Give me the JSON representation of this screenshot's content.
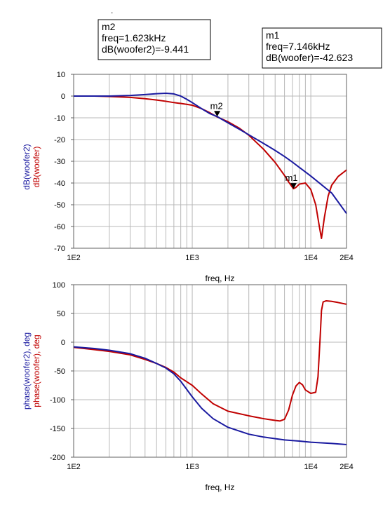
{
  "chart_data": [
    {
      "type": "line",
      "xscale": "log",
      "xlim": [
        100,
        20000
      ],
      "ylim": [
        -70,
        10
      ],
      "grid": true,
      "xlabel": "freq, Hz",
      "ylabel_lines": [
        {
          "text": "dB(woofer2)",
          "color": "#1a1aa0"
        },
        {
          "text": "dB(woofer)",
          "color": "#c00000"
        }
      ],
      "x_ticks": [
        "1E2",
        "1E3",
        "1E4",
        "2E4"
      ],
      "y_ticks": [
        "10",
        "0",
        "-10",
        "-20",
        "-30",
        "-40",
        "-50",
        "-60",
        "-70"
      ],
      "series": [
        {
          "color": "#1a1aa0",
          "x": [
            100,
            150,
            200,
            300,
            400,
            500,
            600,
            700,
            800,
            900,
            1000,
            1200,
            1400,
            1623,
            2000,
            2500,
            3000,
            4000,
            5000,
            6000,
            7000,
            8000,
            10000,
            12000,
            15000,
            20000
          ],
          "y": [
            0,
            0,
            0,
            0.3,
            0.7,
            1.1,
            1.3,
            1.0,
            0,
            -1.5,
            -3.0,
            -5.8,
            -8.0,
            -9.441,
            -12.3,
            -15.3,
            -17.8,
            -21.8,
            -25.0,
            -27.8,
            -30.4,
            -32.8,
            -36.8,
            -40.3,
            -44.6,
            -54.0
          ]
        },
        {
          "color": "#c00000",
          "x": [
            100,
            150,
            200,
            300,
            400,
            500,
            600,
            700,
            800,
            1000,
            1200,
            1400,
            1623,
            2000,
            2500,
            3000,
            4000,
            5000,
            6000,
            6500,
            7000,
            7146,
            7500,
            8000,
            9000,
            10000,
            11000,
            11800,
            12300,
            13000,
            14000,
            15000,
            17000,
            20000
          ],
          "y": [
            0,
            0,
            -0.2,
            -0.6,
            -1.2,
            -1.8,
            -2.4,
            -3.0,
            -3.4,
            -4.2,
            -5.8,
            -7.6,
            -9.6,
            -11.8,
            -14.8,
            -18.0,
            -24.5,
            -30.5,
            -36.5,
            -39.5,
            -42.0,
            -42.623,
            -42.0,
            -40.5,
            -40.0,
            -43.0,
            -50.0,
            -60.0,
            -65.5,
            -56.0,
            -46.0,
            -41.0,
            -37.0,
            -34.0
          ]
        }
      ],
      "markers": [
        {
          "name": "m2",
          "x": 1623,
          "y": -9.441,
          "box_lines": [
            "m2",
            "freq=1.623kHz",
            "dB(woofer2)=-9.441"
          ]
        },
        {
          "name": "m1",
          "x": 7146,
          "y": -42.623,
          "box_lines": [
            "m1",
            "freq=7.146kHz",
            "dB(woofer)=-42.623"
          ]
        }
      ]
    },
    {
      "type": "line",
      "xscale": "log",
      "xlim": [
        100,
        20000
      ],
      "ylim": [
        -200,
        100
      ],
      "grid": true,
      "xlabel": "freq, Hz",
      "ylabel_lines": [
        {
          "text": "phase(woofer2), deg",
          "color": "#1a1aa0"
        },
        {
          "text": "phase(woofer), deg",
          "color": "#c00000"
        }
      ],
      "x_ticks": [
        "1E2",
        "1E3",
        "1E4",
        "2E4"
      ],
      "y_ticks": [
        "100",
        "50",
        "0",
        "-50",
        "-100",
        "-150",
        "-200"
      ],
      "series": [
        {
          "color": "#1a1aa0",
          "x": [
            100,
            150,
            200,
            300,
            400,
            500,
            600,
            700,
            800,
            1000,
            1200,
            1500,
            2000,
            3000,
            4000,
            6000,
            8000,
            10000,
            15000,
            20000
          ],
          "y": [
            -8,
            -11,
            -14,
            -20,
            -28,
            -37,
            -45,
            -55,
            -68,
            -95,
            -115,
            -133,
            -148,
            -160,
            -165,
            -170,
            -172,
            -174,
            -176,
            -178
          ]
        },
        {
          "color": "#c00000",
          "x": [
            100,
            150,
            200,
            300,
            400,
            500,
            600,
            700,
            800,
            1000,
            1200,
            1500,
            2000,
            3000,
            4000,
            5000,
            5500,
            6000,
            6500,
            7000,
            7500,
            8000,
            8500,
            9000,
            10000,
            11000,
            11500,
            12000,
            12300,
            12700,
            13500,
            15000,
            17000,
            20000
          ],
          "y": [
            -9,
            -13,
            -16,
            -22,
            -30,
            -37,
            -44,
            -52,
            -62,
            -75,
            -90,
            -107,
            -120,
            -128,
            -133,
            -136,
            -137,
            -134,
            -118,
            -92,
            -76,
            -70,
            -74,
            -83,
            -89,
            -87,
            -60,
            10,
            55,
            70,
            72,
            71,
            69,
            66
          ]
        }
      ],
      "markers": []
    }
  ]
}
